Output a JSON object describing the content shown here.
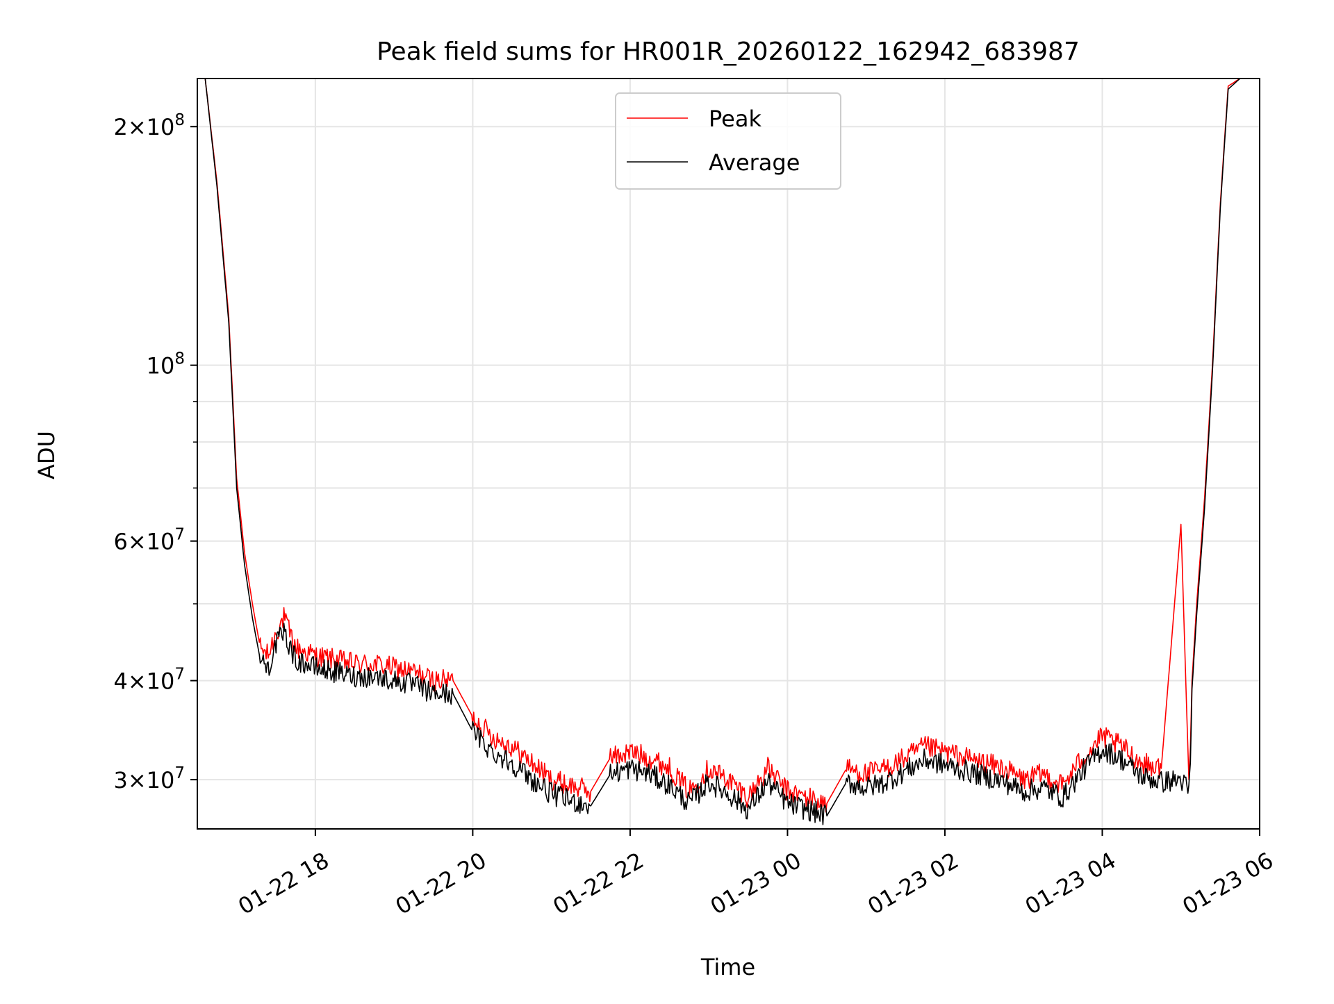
{
  "chart_data": {
    "type": "line",
    "title": "Peak field sums for HR001R_20260122_162942_683987",
    "xlabel": "Time",
    "ylabel": "ADU",
    "yscale": "log",
    "ylim": [
      26000000,
      230000000
    ],
    "xlim_hours": [
      16.5,
      30.0
    ],
    "x_unit": "hours since 2026-01-22 00:00",
    "grid": true,
    "legend_position": "upper center",
    "x_ticks": [
      {
        "hour": 18,
        "label": "01-22 18"
      },
      {
        "hour": 20,
        "label": "01-22 20"
      },
      {
        "hour": 22,
        "label": "01-22 22"
      },
      {
        "hour": 24,
        "label": "01-23 00"
      },
      {
        "hour": 26,
        "label": "01-23 02"
      },
      {
        "hour": 28,
        "label": "01-23 04"
      },
      {
        "hour": 30,
        "label": "01-23 06"
      }
    ],
    "y_ticks": [
      {
        "value": 30000000,
        "mantissa": "3",
        "exponent": "7"
      },
      {
        "value": 40000000,
        "mantissa": "4",
        "exponent": "7"
      },
      {
        "value": 60000000,
        "mantissa": "6",
        "exponent": "7"
      },
      {
        "value": 100000000,
        "mantissa": "",
        "exponent": "8"
      },
      {
        "value": 200000000,
        "mantissa": "2",
        "exponent": "8"
      }
    ],
    "y_minor_ticks": [
      50000000,
      70000000,
      80000000,
      90000000
    ],
    "series": [
      {
        "name": "Peak",
        "color": "#ff0000",
        "x": [
          16.6,
          16.75,
          16.9,
          17.0,
          17.1,
          17.2,
          17.3,
          17.4,
          17.5,
          17.6,
          17.75,
          18.0,
          18.25,
          18.5,
          18.75,
          19.0,
          19.25,
          19.5,
          19.75,
          20.0,
          20.25,
          20.5,
          20.75,
          21.0,
          21.25,
          21.5,
          21.75,
          22.0,
          22.25,
          22.5,
          22.75,
          23.0,
          23.25,
          23.5,
          23.75,
          24.0,
          24.25,
          24.5,
          24.75,
          25.0,
          25.25,
          25.5,
          25.75,
          26.0,
          26.25,
          26.5,
          26.75,
          27.0,
          27.25,
          27.5,
          27.75,
          28.0,
          28.25,
          28.5,
          28.75,
          29.0,
          29.1,
          29.12,
          29.14,
          29.2,
          29.3,
          29.4,
          29.5,
          29.6,
          29.75,
          29.85
        ],
        "values": [
          230000000,
          170000000,
          115000000,
          72000000,
          58000000,
          50000000,
          44000000,
          43000000,
          46000000,
          48000000,
          44000000,
          43000000,
          42500000,
          42000000,
          42000000,
          41500000,
          41000000,
          40000000,
          40000000,
          36000000,
          34000000,
          33000000,
          31500000,
          30000000,
          29500000,
          29000000,
          32000000,
          32500000,
          32000000,
          31000000,
          29000000,
          31000000,
          30000000,
          28500000,
          31000000,
          29000000,
          28500000,
          28000000,
          31000000,
          30500000,
          31000000,
          32000000,
          33000000,
          32500000,
          32000000,
          31500000,
          31000000,
          30000000,
          30500000,
          29500000,
          32000000,
          34000000,
          33000000,
          31500000,
          31000000,
          63000000,
          30000000,
          33000000,
          40000000,
          50000000,
          68000000,
          100000000,
          160000000,
          225000000,
          230000000,
          230000000
        ]
      },
      {
        "name": "Average",
        "color": "#000000",
        "x": [
          16.6,
          16.75,
          16.9,
          17.0,
          17.1,
          17.2,
          17.3,
          17.4,
          17.5,
          17.6,
          17.75,
          18.0,
          18.25,
          18.5,
          18.75,
          19.0,
          19.25,
          19.5,
          19.75,
          20.0,
          20.25,
          20.5,
          20.75,
          21.0,
          21.25,
          21.5,
          21.75,
          22.0,
          22.25,
          22.5,
          22.75,
          23.0,
          23.25,
          23.5,
          23.75,
          24.0,
          24.25,
          24.5,
          24.75,
          25.0,
          25.25,
          25.5,
          25.75,
          26.0,
          26.25,
          26.5,
          26.75,
          27.0,
          27.25,
          27.5,
          27.75,
          28.0,
          28.25,
          28.5,
          28.75,
          29.0,
          29.1,
          29.12,
          29.14,
          29.2,
          29.3,
          29.4,
          29.5,
          29.6,
          29.75,
          29.85
        ],
        "values": [
          230000000,
          168000000,
          113000000,
          70000000,
          56000000,
          48000000,
          42500000,
          41500000,
          44500000,
          46000000,
          42500000,
          41500000,
          41000000,
          40500000,
          40500000,
          40000000,
          39500000,
          38500000,
          38500000,
          34500000,
          32500000,
          31500000,
          30000000,
          28800000,
          28200000,
          27800000,
          30500000,
          31000000,
          30500000,
          29500000,
          28000000,
          29800000,
          28800000,
          27500000,
          29800000,
          28000000,
          27500000,
          27000000,
          29800000,
          29300000,
          29800000,
          30800000,
          31800000,
          31300000,
          30800000,
          30300000,
          29800000,
          29000000,
          29300000,
          28500000,
          30800000,
          32800000,
          31800000,
          30300000,
          29800000,
          30000000,
          29000000,
          31500000,
          39000000,
          48500000,
          66000000,
          98000000,
          158000000,
          223000000,
          230000000,
          230000000
        ]
      }
    ]
  }
}
